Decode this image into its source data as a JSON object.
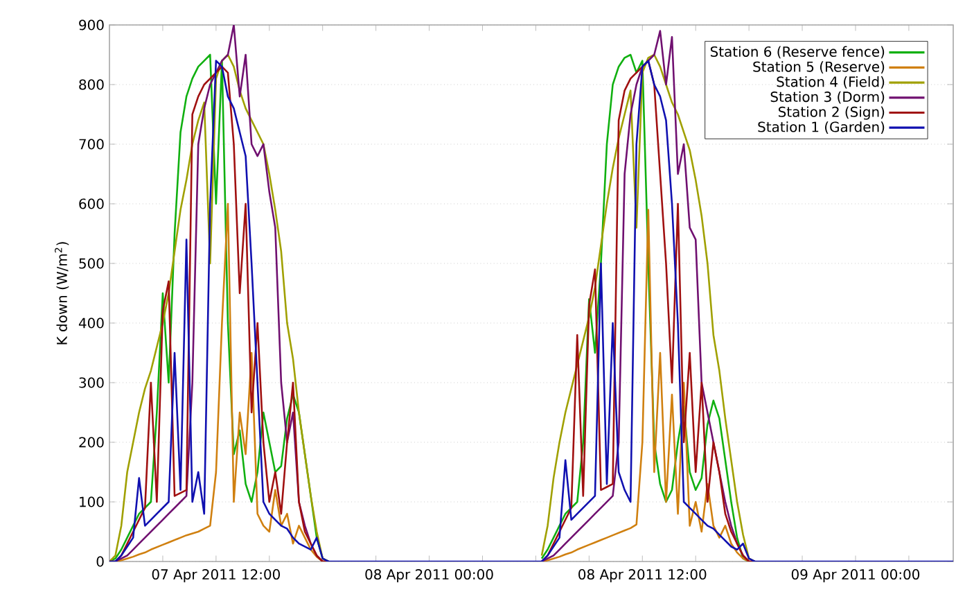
{
  "chart_data": {
    "type": "line",
    "ylabel": "K down (W/m$^{2}$)",
    "x": [
      "2011-04-07T06:00",
      "2011-04-07T06:20",
      "2011-04-07T06:40",
      "2011-04-07T07:00",
      "2011-04-07T07:20",
      "2011-04-07T07:40",
      "2011-04-07T08:00",
      "2011-04-07T08:20",
      "2011-04-07T08:40",
      "2011-04-07T09:00",
      "2011-04-07T09:20",
      "2011-04-07T09:40",
      "2011-04-07T10:00",
      "2011-04-07T10:20",
      "2011-04-07T10:40",
      "2011-04-07T11:00",
      "2011-04-07T11:20",
      "2011-04-07T11:40",
      "2011-04-07T12:00",
      "2011-04-07T12:20",
      "2011-04-07T12:40",
      "2011-04-07T13:00",
      "2011-04-07T13:20",
      "2011-04-07T13:40",
      "2011-04-07T14:00",
      "2011-04-07T14:20",
      "2011-04-07T14:40",
      "2011-04-07T15:00",
      "2011-04-07T15:20",
      "2011-04-07T15:40",
      "2011-04-07T16:00",
      "2011-04-07T16:20",
      "2011-04-07T16:40",
      "2011-04-07T17:00",
      "2011-04-07T17:20",
      "2011-04-07T17:40",
      "2011-04-07T18:00",
      "2011-04-07T18:20",
      "2011-04-07T18:40",
      "2011-04-08T06:00",
      "2011-04-08T06:20",
      "2011-04-08T06:40",
      "2011-04-08T07:00",
      "2011-04-08T07:20",
      "2011-04-08T07:40",
      "2011-04-08T08:00",
      "2011-04-08T08:20",
      "2011-04-08T08:40",
      "2011-04-08T09:00",
      "2011-04-08T09:20",
      "2011-04-08T09:40",
      "2011-04-08T10:00",
      "2011-04-08T10:20",
      "2011-04-08T10:40",
      "2011-04-08T11:00",
      "2011-04-08T11:20",
      "2011-04-08T11:40",
      "2011-04-08T12:00",
      "2011-04-08T12:20",
      "2011-04-08T12:40",
      "2011-04-08T13:00",
      "2011-04-08T13:20",
      "2011-04-08T13:40",
      "2011-04-08T14:00",
      "2011-04-08T14:20",
      "2011-04-08T14:40",
      "2011-04-08T15:00",
      "2011-04-08T15:20",
      "2011-04-08T15:40",
      "2011-04-08T16:00",
      "2011-04-08T16:20",
      "2011-04-08T16:40",
      "2011-04-08T17:00",
      "2011-04-08T17:20",
      "2011-04-08T17:40",
      "2011-04-08T18:00",
      "2011-04-08T18:20",
      "2011-04-08T18:40",
      "2011-04-09T05:30"
    ],
    "series": [
      {
        "name": "Station 6 (Reserve fence)",
        "color": "#10b010",
        "values": [
          0,
          5,
          20,
          40,
          60,
          80,
          90,
          100,
          250,
          450,
          300,
          550,
          720,
          780,
          810,
          830,
          840,
          850,
          600,
          840,
          400,
          180,
          220,
          130,
          100,
          150,
          250,
          200,
          150,
          160,
          240,
          280,
          250,
          180,
          110,
          40,
          5,
          0,
          null,
          null,
          5,
          20,
          40,
          60,
          80,
          90,
          100,
          200,
          440,
          350,
          500,
          700,
          800,
          830,
          845,
          850,
          820,
          840,
          500,
          200,
          130,
          100,
          120,
          200,
          260,
          150,
          120,
          140,
          230,
          270,
          240,
          170,
          100,
          40,
          5,
          0,
          null,
          null,
          null
        ]
      },
      {
        "name": "Station 5 (Reserve)",
        "color": "#d08010",
        "values": [
          0,
          0,
          2,
          5,
          8,
          12,
          15,
          20,
          24,
          28,
          32,
          36,
          40,
          44,
          47,
          50,
          55,
          60,
          150,
          400,
          600,
          100,
          250,
          180,
          350,
          80,
          60,
          50,
          120,
          60,
          80,
          30,
          60,
          40,
          20,
          8,
          0,
          0,
          null,
          null,
          0,
          2,
          5,
          8,
          12,
          15,
          20,
          24,
          28,
          32,
          36,
          40,
          44,
          48,
          52,
          56,
          62,
          200,
          590,
          150,
          350,
          100,
          280,
          80,
          300,
          60,
          100,
          50,
          130,
          60,
          40,
          60,
          30,
          15,
          5,
          0,
          null,
          null,
          null
        ]
      },
      {
        "name": "Station 4 (Field)",
        "color": "#a0a000",
        "values": [
          0,
          10,
          60,
          150,
          200,
          250,
          290,
          320,
          360,
          400,
          450,
          520,
          590,
          640,
          700,
          740,
          770,
          500,
          810,
          840,
          850,
          830,
          790,
          760,
          740,
          720,
          700,
          650,
          590,
          520,
          400,
          340,
          250,
          180,
          110,
          50,
          5,
          0,
          null,
          null,
          10,
          60,
          140,
          200,
          250,
          290,
          330,
          370,
          410,
          460,
          530,
          600,
          660,
          710,
          750,
          790,
          560,
          820,
          845,
          850,
          830,
          800,
          770,
          750,
          720,
          690,
          640,
          580,
          500,
          380,
          320,
          240,
          170,
          100,
          45,
          5,
          0,
          null,
          null
        ]
      },
      {
        "name": "Station 3 (Dorm)",
        "color": "#701070",
        "values": [
          0,
          0,
          5,
          10,
          20,
          30,
          40,
          50,
          60,
          70,
          80,
          90,
          100,
          110,
          300,
          700,
          760,
          800,
          820,
          840,
          850,
          900,
          780,
          850,
          700,
          680,
          700,
          620,
          560,
          300,
          200,
          250,
          100,
          60,
          30,
          10,
          0,
          0,
          null,
          null,
          0,
          5,
          10,
          20,
          30,
          40,
          50,
          60,
          70,
          80,
          90,
          100,
          110,
          200,
          650,
          750,
          800,
          830,
          840,
          850,
          890,
          800,
          880,
          650,
          700,
          560,
          540,
          300,
          250,
          200,
          150,
          100,
          60,
          30,
          10,
          0,
          0,
          null,
          null
        ]
      },
      {
        "name": "Station 2 (Sign)",
        "color": "#a01010",
        "values": [
          0,
          0,
          10,
          30,
          50,
          70,
          90,
          300,
          100,
          420,
          470,
          110,
          115,
          120,
          750,
          780,
          800,
          810,
          820,
          830,
          820,
          700,
          450,
          600,
          250,
          400,
          200,
          100,
          150,
          80,
          200,
          300,
          100,
          50,
          30,
          10,
          0,
          0,
          null,
          null,
          0,
          10,
          30,
          50,
          70,
          90,
          380,
          110,
          430,
          490,
          120,
          125,
          130,
          740,
          790,
          810,
          820,
          830,
          840,
          800,
          650,
          500,
          300,
          600,
          200,
          350,
          150,
          300,
          100,
          200,
          150,
          80,
          50,
          30,
          10,
          0,
          0,
          null,
          null
        ]
      },
      {
        "name": "Station 1 (Garden)",
        "color": "#1010b0",
        "values": [
          0,
          0,
          10,
          25,
          40,
          140,
          60,
          70,
          80,
          90,
          100,
          350,
          120,
          540,
          100,
          150,
          80,
          600,
          840,
          830,
          780,
          760,
          720,
          680,
          500,
          300,
          100,
          80,
          70,
          60,
          55,
          40,
          30,
          25,
          20,
          40,
          5,
          0,
          0,
          0,
          0,
          10,
          25,
          40,
          170,
          70,
          80,
          90,
          100,
          110,
          500,
          130,
          400,
          150,
          120,
          100,
          700,
          830,
          840,
          800,
          780,
          740,
          600,
          400,
          100,
          90,
          80,
          70,
          60,
          55,
          45,
          35,
          25,
          20,
          30,
          5,
          0,
          0,
          0
        ]
      }
    ],
    "xlim": [
      "2011-04-07T06:00",
      "2011-04-09T05:30"
    ],
    "xticks": [
      {
        "value": "2011-04-07T09:00",
        "label": null
      },
      {
        "value": "2011-04-07T12:00",
        "label": "07 Apr 2011 12:00"
      },
      {
        "value": "2011-04-07T15:00",
        "label": null
      },
      {
        "value": "2011-04-07T18:00",
        "label": null
      },
      {
        "value": "2011-04-07T21:00",
        "label": null
      },
      {
        "value": "2011-04-08T00:00",
        "label": "08 Apr 2011 00:00"
      },
      {
        "value": "2011-04-08T03:00",
        "label": null
      },
      {
        "value": "2011-04-08T06:00",
        "label": null
      },
      {
        "value": "2011-04-08T09:00",
        "label": null
      },
      {
        "value": "2011-04-08T12:00",
        "label": "08 Apr 2011 12:00"
      },
      {
        "value": "2011-04-08T15:00",
        "label": null
      },
      {
        "value": "2011-04-08T18:00",
        "label": null
      },
      {
        "value": "2011-04-08T21:00",
        "label": null
      },
      {
        "value": "2011-04-09T00:00",
        "label": "09 Apr 2011 00:00"
      },
      {
        "value": "2011-04-09T03:00",
        "label": null
      }
    ],
    "ylim": [
      0,
      900
    ],
    "yticks": [
      0,
      100,
      200,
      300,
      400,
      500,
      600,
      700,
      800,
      900
    ],
    "grid": "y",
    "legend": "top right"
  }
}
